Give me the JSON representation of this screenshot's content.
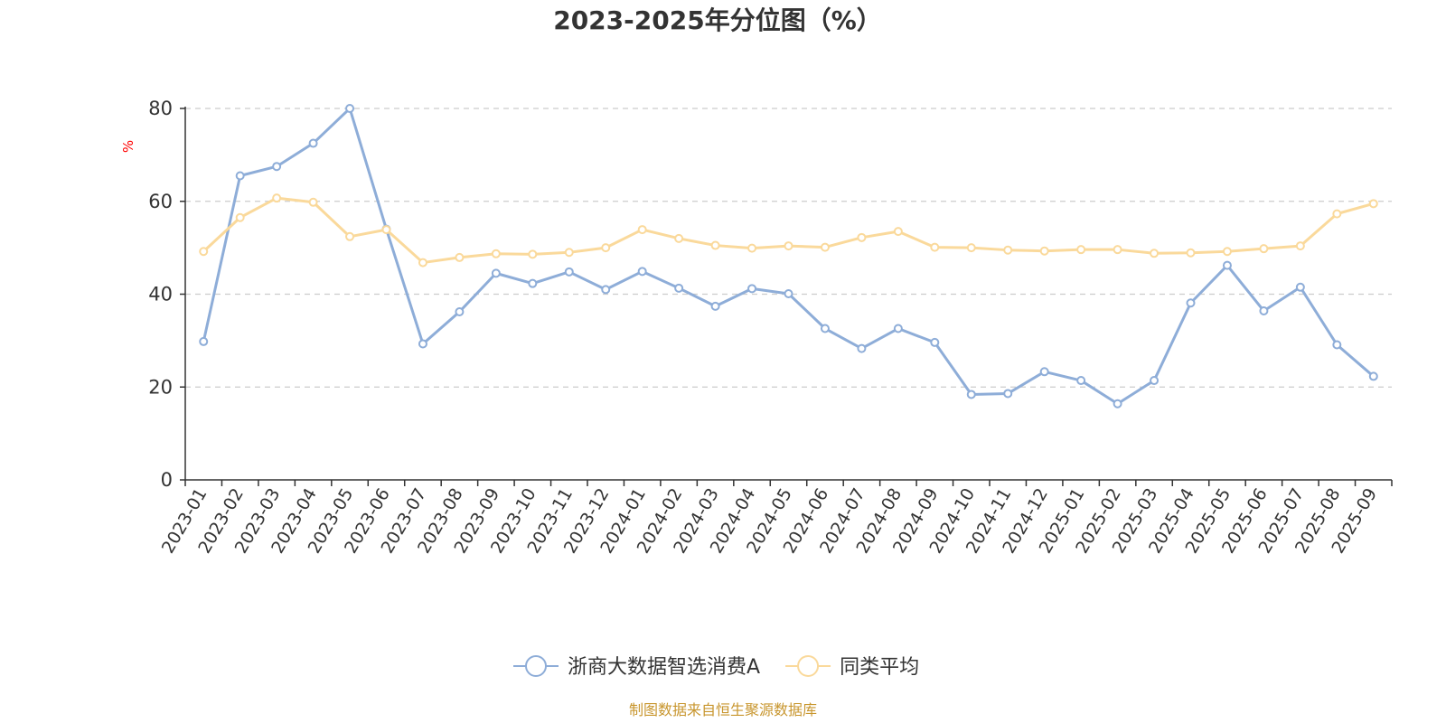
{
  "chart_data": {
    "type": "line",
    "title": "2023-2025年分位图（%）",
    "ylabel": "%",
    "xlabel": "",
    "ylim": [
      0,
      80
    ],
    "yticks": [
      0,
      20,
      40,
      60,
      80
    ],
    "grid": true,
    "legend_position": "bottom",
    "categories": [
      "2023-01",
      "2023-02",
      "2023-03",
      "2023-04",
      "2023-05",
      "2023-06",
      "2023-07",
      "2023-08",
      "2023-09",
      "2023-10",
      "2023-11",
      "2023-12",
      "2024-01",
      "2024-02",
      "2024-03",
      "2024-04",
      "2024-05",
      "2024-06",
      "2024-07",
      "2024-08",
      "2024-09",
      "2024-10",
      "2024-11",
      "2024-12",
      "2025-01",
      "2025-02",
      "2025-03",
      "2025-04",
      "2025-05",
      "2025-06",
      "2025-07",
      "2025-08",
      "2025-09"
    ],
    "series": [
      {
        "name": "浙商大数据智选消费A",
        "color": "#8eadd8",
        "values": [
          29.8,
          65.5,
          67.5,
          72.5,
          80.0,
          54.0,
          29.3,
          36.2,
          44.5,
          42.3,
          44.8,
          41.0,
          44.9,
          41.3,
          37.4,
          41.2,
          40.1,
          32.6,
          28.3,
          32.6,
          29.6,
          18.4,
          18.6,
          23.3,
          21.4,
          16.4,
          21.4,
          38.1,
          46.2,
          36.4,
          41.5,
          29.1,
          22.3
        ]
      },
      {
        "name": "同类平均",
        "color": "#fad99b",
        "values": [
          49.2,
          56.5,
          60.7,
          59.8,
          52.4,
          53.9,
          46.8,
          47.9,
          48.7,
          48.6,
          49.0,
          50.0,
          53.9,
          52.0,
          50.5,
          49.9,
          50.4,
          50.1,
          52.2,
          53.5,
          50.1,
          50.0,
          49.5,
          49.3,
          49.6,
          49.6,
          48.8,
          48.9,
          49.2,
          49.8,
          50.4,
          57.3,
          59.5
        ]
      }
    ]
  },
  "footer": {
    "source": "制图数据来自恒生聚源数据库"
  },
  "colors": {
    "axis": "#333333",
    "grid": "#cccccc",
    "unit": "#ff0000",
    "source": "#c8962e"
  }
}
